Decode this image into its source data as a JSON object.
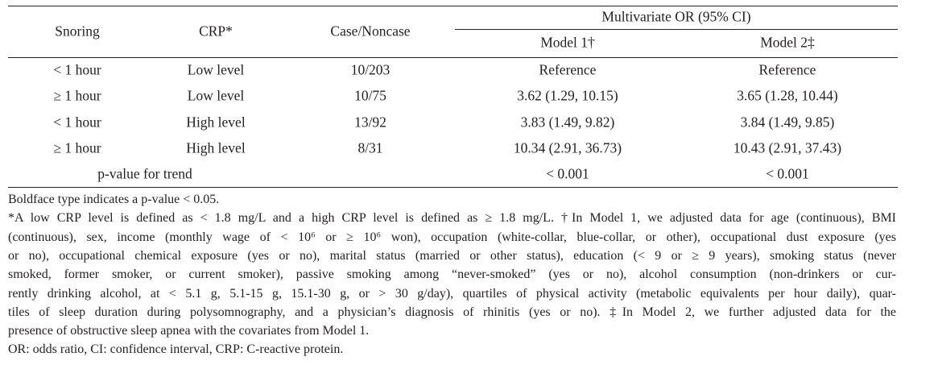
{
  "table": {
    "header": {
      "snoring": "Snoring",
      "crp": "CRP*",
      "case_noncase": "Case/Noncase",
      "multivariate": "Multivariate OR (95% CI)",
      "model1": "Model 1†",
      "model2": "Model 2‡"
    },
    "rows": [
      [
        "< 1 hour",
        "Low level",
        "10/203",
        "Reference",
        "Reference"
      ],
      [
        "≥ 1 hour",
        "Low level",
        "10/75",
        "3.62 (1.29, 10.15)",
        "3.65 (1.28, 10.44)"
      ],
      [
        "< 1 hour",
        "High level",
        "13/92",
        "3.83 (1.49, 9.82)",
        "3.84 (1.49, 9.85)"
      ],
      [
        "≥ 1 hour",
        "High level",
        "8/31",
        "10.34 (2.91, 36.73)",
        "10.43 (2.91, 37.43)"
      ]
    ],
    "trend": {
      "label": "p-value for trend",
      "model1": "< 0.001",
      "model2": "< 0.001"
    }
  },
  "footnotes": {
    "lines": [
      "Boldface type indicates a p-value < 0.05.",
      "*A low CRP level is defined as < 1.8 mg/L and a high CRP level is defined as ≥ 1.8 mg/L. †In Model 1, we adjusted data for age (continuous), BMI",
      "(continuous), sex, income (monthly wage of < 10⁶ or ≥ 10⁶ won), occupation (white-collar, blue-collar, or other), occupational dust exposure (yes",
      "or no), occupational chemical exposure (yes or no), marital status (married or other status), education (< 9 or ≥ 9 years), smoking status (never",
      "smoked, former smoker, or current smoker), passive smoking among “never-smoked” (yes or no), alcohol consumption (non-drinkers or cur-",
      "rently drinking alcohol, at < 5.1 g, 5.1-15 g, 15.1-30 g, or > 30 g/day), quartiles of physical activity (metabolic equivalents per hour daily), quar-",
      "tiles of sleep duration during polysomnography, and a physician’s diagnosis of rhinitis (yes or no). ‡In Model 2, we further adjusted data for the",
      "presence of obstructive sleep apnea with the covariates from Model 1.",
      "OR: odds ratio, CI: confidence interval, CRP: C-reactive protein."
    ]
  }
}
